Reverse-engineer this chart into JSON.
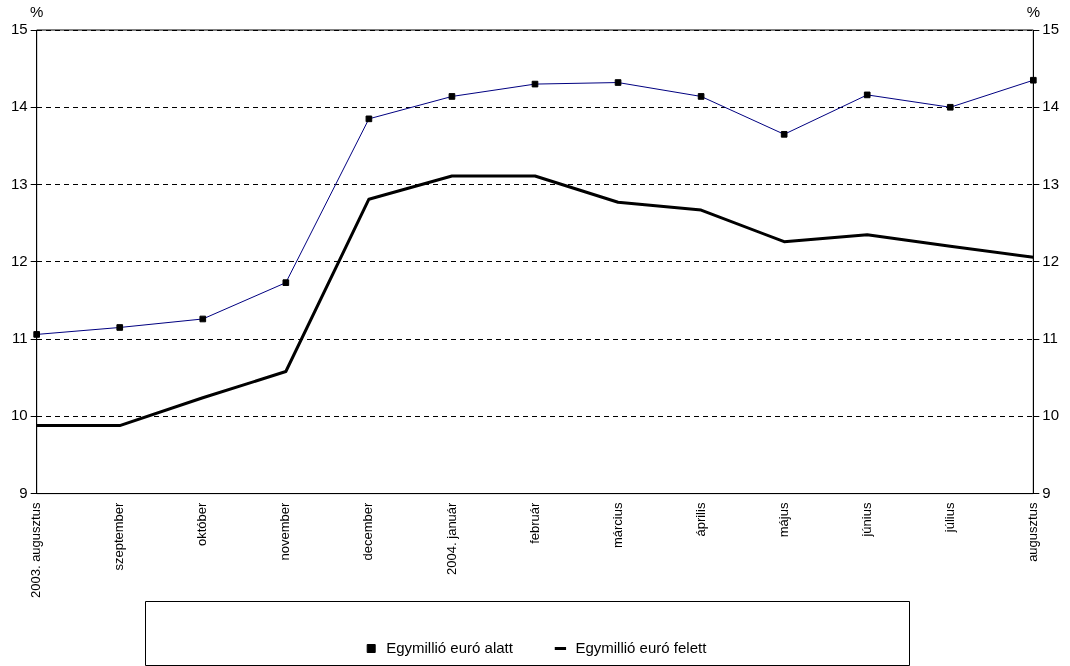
{
  "chart_data": {
    "type": "line",
    "ylabel": "%",
    "y2label": "%",
    "categories": [
      "2003. augusztus",
      "szeptember",
      "október",
      "november",
      "december",
      "2004. január",
      "február",
      "március",
      "április",
      "május",
      "június",
      "július",
      "augusztus"
    ],
    "series": [
      {
        "name": "Egymillió euró alatt",
        "color": "#000080",
        "marker": "square",
        "values": [
          11.06,
          11.15,
          11.26,
          11.73,
          13.85,
          14.14,
          14.3,
          14.32,
          14.14,
          13.65,
          14.16,
          14.0,
          14.35
        ]
      },
      {
        "name": "Egymillió euró felett",
        "color": "#000000",
        "marker": "none",
        "values": [
          9.88,
          9.88,
          10.24,
          10.58,
          12.81,
          13.11,
          13.11,
          12.77,
          12.67,
          12.26,
          12.35,
          12.2,
          12.06
        ]
      }
    ],
    "ylim": [
      9,
      15
    ],
    "yticks": [
      9,
      10,
      11,
      12,
      13,
      14,
      15
    ],
    "y2lim": [
      9,
      15
    ],
    "y2ticks": [
      9,
      10,
      11,
      12,
      13,
      14,
      15
    ],
    "grid": "y",
    "legend": "bottom",
    "line_style": "solid"
  }
}
